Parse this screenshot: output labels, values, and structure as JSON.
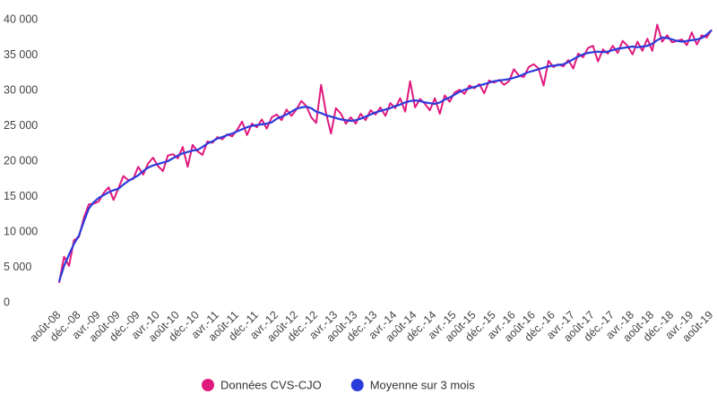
{
  "chart_data": {
    "type": "line",
    "categories": [
      "août-08",
      null,
      null,
      null,
      "déc.-08",
      null,
      null,
      null,
      "avr.-09",
      null,
      null,
      null,
      "août-09",
      null,
      null,
      null,
      "déc.-09",
      null,
      null,
      null,
      "avr.-10",
      null,
      null,
      null,
      "août-10",
      null,
      null,
      null,
      "déc.-10",
      null,
      null,
      null,
      "avr.-11",
      null,
      null,
      null,
      "août-11",
      null,
      null,
      null,
      "déc.-11",
      null,
      null,
      null,
      "avr.-12",
      null,
      null,
      null,
      "août-12",
      null,
      null,
      null,
      "déc.-12",
      null,
      null,
      null,
      "avr.-13",
      null,
      null,
      null,
      "août-13",
      null,
      null,
      null,
      "déc.-13",
      null,
      null,
      null,
      "avr.-14",
      null,
      null,
      null,
      "août-14",
      null,
      null,
      null,
      "déc.-14",
      null,
      null,
      null,
      "avr.-15",
      null,
      null,
      null,
      "août-15",
      null,
      null,
      null,
      "déc.-15",
      null,
      null,
      null,
      "avr.-16",
      null,
      null,
      null,
      "août-16",
      null,
      null,
      null,
      "déc.-16",
      null,
      null,
      null,
      "avr.-17",
      null,
      null,
      null,
      "août-17",
      null,
      null,
      null,
      "déc.-17",
      null,
      null,
      null,
      "avr.-18",
      null,
      null,
      null,
      "août-18",
      null,
      null,
      null,
      "déc.-18",
      null,
      null,
      null,
      "avr.-19",
      null,
      null,
      null,
      "août-19"
    ],
    "series": [
      {
        "name": "Données CVS-CJO",
        "color": "#e0197d",
        "values": [
          2800,
          6500,
          5200,
          8800,
          9300,
          12000,
          13900,
          14000,
          14300,
          15500,
          16300,
          14500,
          16200,
          17900,
          17300,
          17500,
          19200,
          18100,
          19700,
          20500,
          19300,
          18600,
          20800,
          21000,
          20400,
          22000,
          19200,
          22300,
          21400,
          20900,
          22800,
          22600,
          23400,
          23100,
          23800,
          23500,
          24400,
          25600,
          23700,
          25300,
          24800,
          25900,
          24600,
          26200,
          26600,
          25800,
          27300,
          26400,
          27300,
          28500,
          27800,
          26200,
          25400,
          30800,
          26800,
          23900,
          27500,
          26700,
          25300,
          26200,
          25300,
          26700,
          25800,
          27200,
          26600,
          27600,
          26400,
          28200,
          27500,
          28900,
          27000,
          31300,
          27600,
          28800,
          28100,
          27200,
          28900,
          26700,
          29300,
          28400,
          29700,
          30100,
          29500,
          30700,
          30300,
          30900,
          29600,
          31400,
          31100,
          31500,
          30800,
          31300,
          33000,
          32100,
          31900,
          33300,
          33700,
          33100,
          30700,
          34200,
          33300,
          33700,
          33400,
          34300,
          33100,
          35200,
          34700,
          36000,
          36300,
          34100,
          35800,
          35200,
          36300,
          35300,
          37000,
          36300,
          35100,
          36900,
          35600,
          37300,
          35600,
          39300,
          36900,
          37800,
          36800,
          37000,
          37200,
          36400,
          38200,
          36500,
          37800,
          37500,
          38600
        ]
      },
      {
        "name": "Moyenne sur 3 mois",
        "color": "#2a3bdc",
        "values": [
          3000,
          5200,
          6800,
          8300,
          9500,
          11500,
          13300,
          14200,
          14800,
          15200,
          15600,
          15900,
          16100,
          16700,
          17200,
          17600,
          18000,
          18600,
          19100,
          19400,
          19600,
          19800,
          20000,
          20400,
          20800,
          21100,
          21300,
          21500,
          21600,
          22000,
          22500,
          22800,
          23200,
          23400,
          23700,
          23900,
          24200,
          24500,
          24800,
          25000,
          25100,
          25200,
          25300,
          25500,
          26000,
          26300,
          26600,
          27000,
          27400,
          27600,
          27700,
          27500,
          27000,
          26800,
          26500,
          26300,
          26100,
          25900,
          25800,
          25700,
          25800,
          26000,
          26300,
          26600,
          26900,
          27100,
          27300,
          27500,
          27800,
          28000,
          28300,
          28500,
          28600,
          28500,
          28300,
          28200,
          28100,
          28300,
          28700,
          29000,
          29400,
          29800,
          30100,
          30300,
          30500,
          30700,
          30900,
          31100,
          31300,
          31400,
          31500,
          31600,
          31800,
          32000,
          32300,
          32600,
          32800,
          33000,
          33200,
          33400,
          33500,
          33600,
          33700,
          34000,
          34400,
          34800,
          35100,
          35300,
          35400,
          35500,
          35400,
          35500,
          35700,
          35900,
          36000,
          36100,
          36200,
          36100,
          36200,
          36300,
          36600,
          37100,
          37500,
          37400,
          37200,
          37000,
          36900,
          37000,
          37100,
          37200,
          37400,
          37900,
          38500
        ]
      }
    ],
    "ylim": [
      0,
      40000
    ],
    "yticks": [
      0,
      {
        "value": 5000,
        "label": "5 000"
      },
      {
        "value": 10000,
        "label": "10 000"
      },
      {
        "value": 15000,
        "label": "15 000"
      },
      {
        "value": 20000,
        "label": "20 000"
      },
      {
        "value": 25000,
        "label": "25 000"
      },
      {
        "value": 30000,
        "label": "30 000"
      },
      {
        "value": 35000,
        "label": "35 000"
      },
      {
        "value": 40000,
        "label": "40 000"
      }
    ],
    "grid": false,
    "legend": "bottom"
  }
}
